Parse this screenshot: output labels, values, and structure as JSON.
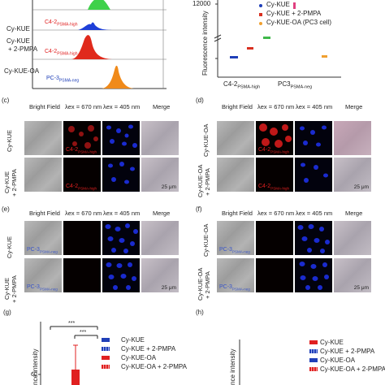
{
  "flow": {
    "row_labels": [
      "Cy-KUE",
      "Cy-KUE\n+ 2-PMPA",
      "Cy-KUE-OA"
    ],
    "cell_labels": [
      "C4-2PSMA-high",
      "C4-2PSMA-high",
      "PC-3PSMA-neg"
    ],
    "peak_colors": [
      "#3fd14a",
      "#1e3fd8",
      "#e02a1c",
      "#f08a1a"
    ]
  },
  "scatter": {
    "ylabel": "Fluorescence intensity",
    "ytick_top": "12000",
    "xgroups": [
      "C4-2PSMA-high",
      "PC3PSMA-neg"
    ],
    "legend": [
      {
        "label": "Cy-KUE",
        "color": "#1f3fb8"
      },
      {
        "label": "Cy-KUE + 2-PMPA",
        "color": "#d93020"
      },
      {
        "label": "Cy-KUE-OA (PC3 cell)",
        "color": "#f0a030"
      }
    ]
  },
  "panels": {
    "c": {
      "letter": "(c)",
      "headers": [
        "Bright Field",
        "λex = 670 nm",
        "λex = 405 nm",
        "Merge"
      ],
      "rows": [
        "Cy-KUE",
        "Cy-KUE\n+ 2-PMPA"
      ],
      "cell_label": "C4-2PSMA-high",
      "scale": "25 μm"
    },
    "d": {
      "letter": "(d)",
      "headers": [
        "Bright Field",
        "λex = 670 nm",
        "λex = 405 nm",
        "Merge"
      ],
      "rows": [
        "Cy-KUE-OA",
        "Cy-KUE-OA\n+ 2-PMPA"
      ],
      "cell_label": "C4-2PSMA-high",
      "scale": "25 μm"
    },
    "e": {
      "letter": "(e)",
      "headers": [
        "Bright Field",
        "λex = 670 nm",
        "λex = 405 nm",
        "Merge"
      ],
      "rows": [
        "Cy-KUE",
        "Cy-KUE\n+ 2-PMPA"
      ],
      "cell_label": "PC-3PSMA-neg",
      "scale": "25 μm"
    },
    "f": {
      "letter": "(f)",
      "headers": [
        "Bright Field",
        "λex = 670 nm",
        "λex = 405 nm",
        "Merge"
      ],
      "rows": [
        "Cy-KUE-OA",
        "Cy-KUE-OA\n+ 2-PMPA"
      ],
      "cell_label": "PC-3PSMA-neg",
      "scale": "25 μm"
    }
  },
  "panel_g": {
    "letter": "(g)",
    "ylabel": "nce intensity",
    "sig": [
      "***",
      "***"
    ],
    "legend": [
      {
        "label": "Cy-KUE",
        "color": "#1f3fb8",
        "pattern": "solid"
      },
      {
        "label": "Cy-KUE + 2-PMPA",
        "color": "#1f3fb8",
        "pattern": "dots"
      },
      {
        "label": "Cy-KUE-OA",
        "color": "#e02020",
        "pattern": "solid"
      },
      {
        "label": "Cy-KUE-OA + 2-PMPA",
        "color": "#e02020",
        "pattern": "dots"
      }
    ],
    "tick_60": "60"
  },
  "panel_h": {
    "letter": "(h)",
    "ylabel": "nce intensity",
    "legend": [
      {
        "label": "Cy-KUE",
        "color": "#e02020",
        "pattern": "solid"
      },
      {
        "label": "Cy-KUE + 2-PMPA",
        "color": "#1f3fb8",
        "pattern": "dots"
      },
      {
        "label": "Cy-KUE-OA",
        "color": "#1f3fb8",
        "pattern": "solid"
      },
      {
        "label": "Cy-KUE-OA + 2-PMPA",
        "color": "#e02020",
        "pattern": "dots"
      }
    ]
  }
}
